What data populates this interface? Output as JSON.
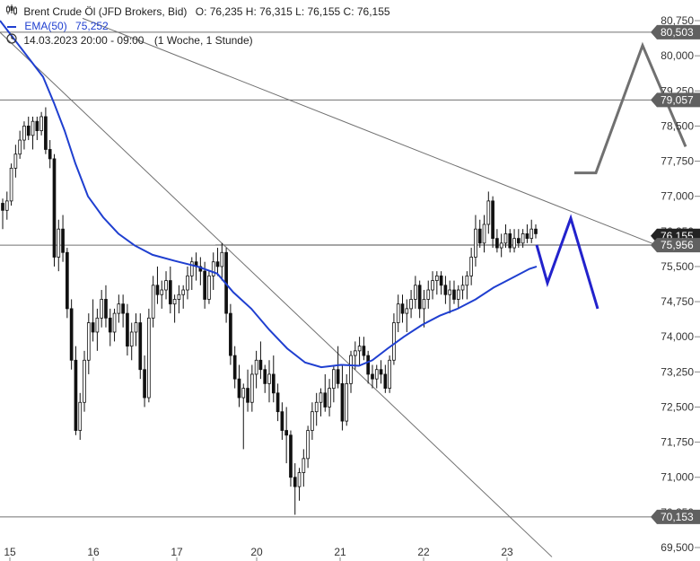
{
  "header": {
    "title": "Brent Crude Öl (JFD Brokers, Bid)",
    "ohlc": "O: 76,235   H: 76,315   L: 76,155   C: 76,155",
    "ema_label": "EMA(50)",
    "ema_value": "75,252",
    "range": "14.03.2023 20:00 - 09:00",
    "interval": "(1 Woche, 1 Stunde)",
    "ema_color": "#1f3fd0"
  },
  "chart_data": {
    "type": "candlestick",
    "y_axis": {
      "min": 69.5,
      "max": 80.75,
      "ticks": [
        "69,500",
        "70,250",
        "71,000",
        "71,750",
        "72,500",
        "73,250",
        "74,000",
        "74,750",
        "75,500",
        "76,250",
        "77,000",
        "77,750",
        "78,500",
        "79,250",
        "80,000",
        "80,750"
      ]
    },
    "x_axis": {
      "labels": [
        "15",
        "16",
        "17",
        "20",
        "21",
        "22",
        "23"
      ]
    },
    "price_tags": [
      {
        "value": 80.503,
        "label": "80,503",
        "color": "#606060"
      },
      {
        "value": 79.057,
        "label": "79,057",
        "color": "#606060"
      },
      {
        "value": 76.155,
        "label": "76,155",
        "color": "#222222"
      },
      {
        "value": 75.956,
        "label": "75,956",
        "color": "#606060"
      },
      {
        "value": 70.153,
        "label": "70,153",
        "color": "#606060"
      }
    ],
    "candles": [
      [
        76.85,
        76.95,
        76.3,
        76.7
      ],
      [
        76.7,
        77.1,
        76.5,
        76.9
      ],
      [
        76.9,
        77.7,
        76.8,
        77.6
      ],
      [
        77.6,
        78.1,
        77.4,
        77.9
      ],
      [
        77.9,
        78.4,
        77.8,
        78.2
      ],
      [
        78.2,
        78.6,
        78.0,
        78.5
      ],
      [
        78.5,
        78.7,
        78.2,
        78.3
      ],
      [
        78.3,
        78.7,
        78.0,
        78.6
      ],
      [
        78.6,
        78.7,
        78.2,
        78.4
      ],
      [
        78.4,
        78.8,
        78.3,
        78.7
      ],
      [
        78.7,
        78.9,
        77.9,
        78.0
      ],
      [
        78.0,
        78.2,
        77.6,
        77.8
      ],
      [
        77.8,
        77.9,
        75.5,
        75.7
      ],
      [
        75.7,
        76.5,
        75.4,
        76.3
      ],
      [
        76.3,
        76.6,
        75.6,
        75.8
      ],
      [
        75.8,
        75.9,
        74.4,
        74.6
      ],
      [
        74.6,
        74.8,
        73.3,
        73.5
      ],
      [
        73.5,
        73.8,
        71.9,
        72.0
      ],
      [
        72.0,
        72.8,
        71.8,
        72.6
      ],
      [
        72.6,
        73.7,
        72.4,
        73.5
      ],
      [
        73.5,
        74.5,
        73.2,
        74.3
      ],
      [
        74.3,
        74.8,
        73.9,
        74.1
      ],
      [
        74.1,
        74.6,
        73.7,
        74.4
      ],
      [
        74.4,
        75.0,
        74.2,
        74.8
      ],
      [
        74.8,
        75.1,
        74.2,
        74.4
      ],
      [
        74.4,
        74.6,
        73.8,
        74.1
      ],
      [
        74.1,
        74.6,
        73.9,
        74.5
      ],
      [
        74.5,
        74.9,
        74.3,
        74.7
      ],
      [
        74.7,
        74.9,
        74.2,
        74.5
      ],
      [
        74.5,
        74.7,
        73.6,
        73.8
      ],
      [
        73.8,
        74.3,
        73.5,
        74.1
      ],
      [
        74.1,
        74.5,
        73.8,
        74.3
      ],
      [
        74.3,
        74.5,
        73.1,
        73.3
      ],
      [
        73.3,
        73.6,
        72.5,
        72.7
      ],
      [
        72.7,
        74.6,
        72.6,
        74.4
      ],
      [
        74.4,
        75.3,
        74.2,
        75.1
      ],
      [
        75.1,
        75.5,
        74.7,
        74.9
      ],
      [
        74.9,
        75.2,
        74.6,
        75.0
      ],
      [
        75.0,
        75.4,
        74.8,
        75.2
      ],
      [
        75.2,
        75.5,
        74.5,
        74.7
      ],
      [
        74.7,
        74.9,
        74.3,
        74.8
      ],
      [
        74.8,
        75.1,
        74.5,
        74.9
      ],
      [
        74.9,
        75.1,
        74.6,
        75.0
      ],
      [
        75.0,
        75.5,
        74.8,
        75.3
      ],
      [
        75.3,
        75.7,
        75.0,
        75.6
      ],
      [
        75.6,
        75.8,
        75.2,
        75.5
      ],
      [
        75.5,
        75.7,
        75.1,
        75.4
      ],
      [
        75.4,
        75.6,
        74.6,
        74.8
      ],
      [
        74.8,
        75.4,
        74.7,
        75.3
      ],
      [
        75.3,
        75.8,
        75.0,
        75.6
      ],
      [
        75.6,
        75.9,
        75.3,
        75.5
      ],
      [
        75.5,
        76.0,
        75.2,
        75.8
      ],
      [
        75.8,
        75.9,
        74.3,
        74.5
      ],
      [
        74.5,
        74.7,
        73.4,
        73.6
      ],
      [
        73.6,
        73.8,
        72.9,
        73.1
      ],
      [
        73.1,
        73.4,
        72.5,
        72.7
      ],
      [
        72.7,
        73.0,
        71.6,
        72.9
      ],
      [
        72.9,
        73.3,
        72.4,
        72.6
      ],
      [
        72.6,
        73.4,
        72.4,
        73.2
      ],
      [
        73.2,
        73.7,
        72.9,
        73.5
      ],
      [
        73.5,
        73.9,
        73.1,
        73.3
      ],
      [
        73.3,
        73.4,
        72.8,
        73.0
      ],
      [
        73.0,
        73.5,
        72.6,
        73.2
      ],
      [
        73.2,
        73.6,
        72.6,
        72.8
      ],
      [
        72.8,
        73.0,
        72.2,
        72.4
      ],
      [
        72.4,
        72.6,
        71.8,
        72.0
      ],
      [
        72.0,
        72.5,
        71.3,
        71.9
      ],
      [
        71.9,
        72.0,
        70.8,
        71.0
      ],
      [
        71.0,
        71.3,
        70.2,
        70.8
      ],
      [
        70.8,
        71.2,
        70.5,
        71.1
      ],
      [
        71.1,
        71.6,
        70.8,
        71.4
      ],
      [
        71.4,
        72.1,
        71.2,
        72.0
      ],
      [
        72.0,
        72.6,
        71.8,
        72.4
      ],
      [
        72.4,
        72.8,
        72.1,
        72.6
      ],
      [
        72.6,
        72.9,
        72.3,
        72.8
      ],
      [
        72.8,
        73.2,
        72.4,
        72.5
      ],
      [
        72.5,
        73.1,
        72.3,
        72.9
      ],
      [
        72.9,
        73.4,
        72.6,
        73.3
      ],
      [
        73.3,
        73.8,
        72.9,
        73.0
      ],
      [
        73.0,
        73.4,
        72.0,
        72.2
      ],
      [
        72.2,
        73.2,
        72.1,
        73.0
      ],
      [
        73.0,
        73.7,
        72.8,
        73.6
      ],
      [
        73.6,
        73.9,
        73.3,
        73.7
      ],
      [
        73.7,
        74.0,
        73.4,
        73.8
      ],
      [
        73.8,
        74.0,
        73.5,
        73.6
      ],
      [
        73.6,
        73.7,
        73.0,
        73.2
      ],
      [
        73.2,
        73.4,
        72.9,
        73.1
      ],
      [
        73.1,
        73.4,
        72.9,
        73.3
      ],
      [
        73.3,
        73.5,
        73.0,
        73.2
      ],
      [
        73.2,
        73.4,
        72.8,
        72.9
      ],
      [
        72.9,
        73.6,
        72.8,
        73.5
      ],
      [
        73.5,
        74.5,
        73.4,
        74.3
      ],
      [
        74.3,
        74.9,
        74.1,
        74.7
      ],
      [
        74.7,
        74.9,
        74.3,
        74.5
      ],
      [
        74.5,
        74.8,
        74.1,
        74.6
      ],
      [
        74.6,
        75.0,
        74.4,
        74.8
      ],
      [
        74.8,
        75.3,
        74.6,
        75.1
      ],
      [
        75.1,
        75.2,
        74.4,
        74.6
      ],
      [
        74.6,
        75.0,
        74.2,
        74.8
      ],
      [
        74.8,
        75.2,
        74.6,
        75.0
      ],
      [
        75.0,
        75.4,
        74.8,
        75.2
      ],
      [
        75.2,
        75.4,
        74.9,
        75.3
      ],
      [
        75.3,
        75.4,
        74.9,
        75.1
      ],
      [
        75.1,
        75.3,
        74.7,
        74.9
      ],
      [
        74.9,
        75.2,
        74.5,
        75.0
      ],
      [
        75.0,
        75.2,
        74.7,
        74.8
      ],
      [
        74.8,
        75.1,
        74.6,
        75.0
      ],
      [
        75.0,
        75.3,
        74.8,
        75.1
      ],
      [
        75.1,
        75.4,
        74.8,
        75.3
      ],
      [
        75.3,
        75.9,
        75.1,
        75.7
      ],
      [
        75.7,
        76.6,
        75.5,
        76.3
      ],
      [
        76.3,
        76.5,
        75.9,
        76.0
      ],
      [
        76.0,
        76.6,
        75.8,
        76.4
      ],
      [
        76.4,
        77.1,
        76.2,
        76.9
      ],
      [
        76.9,
        77.0,
        75.9,
        76.1
      ],
      [
        76.1,
        76.3,
        75.8,
        75.9
      ],
      [
        75.9,
        76.2,
        75.7,
        76.0
      ],
      [
        76.0,
        76.4,
        75.9,
        76.2
      ],
      [
        76.2,
        76.3,
        75.8,
        75.9
      ],
      [
        75.9,
        76.3,
        75.8,
        76.1
      ],
      [
        76.1,
        76.3,
        75.9,
        76.0
      ],
      [
        76.0,
        76.3,
        75.9,
        76.2
      ],
      [
        76.2,
        76.4,
        76.0,
        76.1
      ],
      [
        76.1,
        76.5,
        76.0,
        76.3
      ],
      [
        76.3,
        76.4,
        76.1,
        76.2
      ]
    ],
    "ema50": [
      [
        0,
        80.75
      ],
      [
        48,
        79.55
      ],
      [
        60,
        79.0
      ],
      [
        72,
        78.4
      ],
      [
        84,
        77.7
      ],
      [
        98,
        77.0
      ],
      [
        115,
        76.55
      ],
      [
        132,
        76.2
      ],
      [
        150,
        75.95
      ],
      [
        170,
        75.75
      ],
      [
        195,
        75.62
      ],
      [
        220,
        75.5
      ],
      [
        242,
        75.35
      ],
      [
        260,
        74.95
      ],
      [
        280,
        74.6
      ],
      [
        300,
        74.15
      ],
      [
        320,
        73.75
      ],
      [
        340,
        73.45
      ],
      [
        358,
        73.35
      ],
      [
        380,
        73.4
      ],
      [
        400,
        73.38
      ],
      [
        415,
        73.5
      ],
      [
        432,
        73.75
      ],
      [
        450,
        74.0
      ],
      [
        470,
        74.25
      ],
      [
        490,
        74.45
      ],
      [
        510,
        74.6
      ],
      [
        530,
        74.8
      ],
      [
        550,
        75.05
      ],
      [
        570,
        75.25
      ],
      [
        590,
        75.45
      ],
      [
        598,
        75.5
      ]
    ],
    "trendlines": [
      {
        "points": [
          [
            92,
            80.8
          ],
          [
            730,
            75.97
          ]
        ],
        "color": "#707070",
        "width": 1
      },
      {
        "points": [
          [
            0,
            80.5
          ],
          [
            615,
            69.3
          ]
        ],
        "color": "#707070",
        "width": 1
      },
      {
        "points": [
          [
            240,
            75.96
          ],
          [
            727,
            75.96
          ]
        ],
        "color": "#707070",
        "width": 1
      }
    ],
    "projections": [
      {
        "points": [
          [
            640,
            77.5
          ],
          [
            664,
            77.5
          ],
          [
            716,
            80.22
          ],
          [
            764,
            78.06
          ]
        ],
        "color": "#707070",
        "width": 3
      },
      {
        "points": [
          [
            598,
            75.96
          ],
          [
            610,
            75.15
          ],
          [
            636,
            76.53
          ],
          [
            666,
            74.6
          ]
        ],
        "color": "#2222cc",
        "width": 3
      }
    ]
  }
}
